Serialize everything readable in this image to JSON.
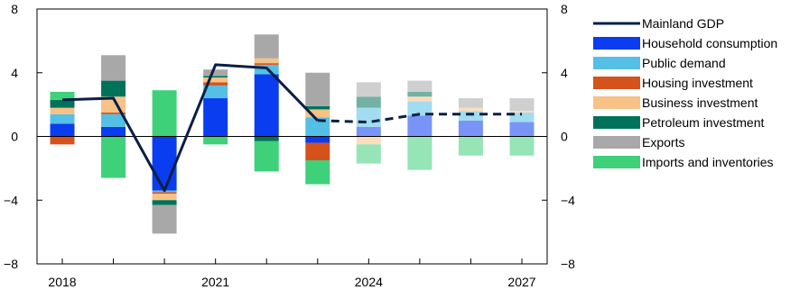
{
  "chart_data": {
    "type": "bar",
    "subtype": "stacked-bar-with-line",
    "title": "",
    "xlabel": "",
    "ylabel": "",
    "ylim": [
      -8,
      8
    ],
    "yticks": [
      -8,
      -4,
      0,
      4,
      8
    ],
    "ytick_labels": [
      "−8",
      "−4",
      "0",
      "4",
      "8"
    ],
    "categories": [
      2018,
      2019,
      2020,
      2021,
      2022,
      2023,
      2024,
      2025,
      2026,
      2027
    ],
    "xtick_labels": [
      {
        "year": 2018,
        "label": "2018"
      },
      {
        "year": 2021,
        "label": "2021"
      },
      {
        "year": 2024,
        "label": "2024"
      },
      {
        "year": 2027,
        "label": "2027"
      }
    ],
    "projection_from": 2024,
    "legend_position": "right",
    "grid": false,
    "series": [
      {
        "name": "Household consumption",
        "color": "#0a3cf0",
        "values": [
          0.8,
          0.6,
          -3.4,
          2.4,
          3.9,
          -0.4,
          0.6,
          1.3,
          1.0,
          0.9
        ]
      },
      {
        "name": "Public demand",
        "color": "#54c0e6",
        "values": [
          0.6,
          0.8,
          -0.1,
          0.8,
          0.6,
          1.2,
          1.2,
          0.9,
          0.6,
          0.6
        ]
      },
      {
        "name": "Housing investment",
        "color": "#d6521c",
        "values": [
          -0.5,
          0.1,
          -0.1,
          0.2,
          0.1,
          -1.1,
          0.0,
          0.0,
          0.0,
          0.0
        ]
      },
      {
        "name": "Business investment",
        "color": "#f8c186",
        "values": [
          0.4,
          1.0,
          -0.4,
          0.3,
          0.3,
          0.5,
          -0.5,
          0.3,
          0.2,
          0.1
        ]
      },
      {
        "name": "Petroleum investment",
        "color": "#00725a",
        "values": [
          0.5,
          1.0,
          -0.3,
          0.1,
          -0.3,
          0.2,
          0.7,
          0.3,
          0.0,
          0.0
        ]
      },
      {
        "name": "Exports",
        "color": "#a8a8a8",
        "values": [
          0.0,
          1.6,
          -1.8,
          0.4,
          1.5,
          2.1,
          0.9,
          0.7,
          0.6,
          0.8
        ]
      },
      {
        "name": "Imports and inventories",
        "color": "#3fd07a",
        "values": [
          0.5,
          -2.6,
          2.9,
          -0.5,
          -1.9,
          -1.5,
          -1.2,
          -2.1,
          -1.2,
          -1.2
        ]
      }
    ],
    "line": {
      "name": "Mainland GDP",
      "color": "#0a1f44",
      "x": [
        2018,
        2019,
        2020,
        2021,
        2022,
        2023,
        2024,
        2025,
        2026,
        2027
      ],
      "values": [
        2.3,
        2.4,
        -3.4,
        4.5,
        4.3,
        1.0,
        0.9,
        1.4,
        1.4,
        1.4
      ]
    }
  }
}
